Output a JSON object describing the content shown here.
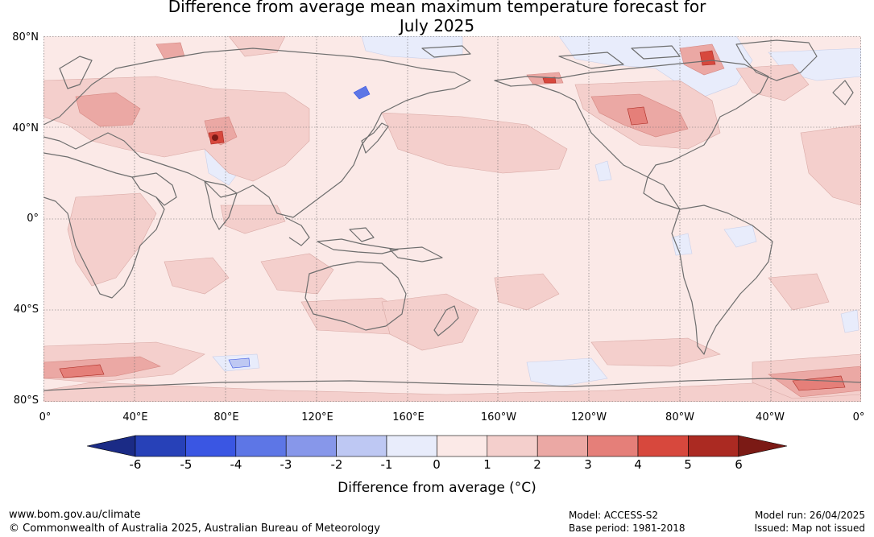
{
  "title_line1": "Difference from average mean maximum temperature forecast for",
  "title_line2": "July 2025",
  "lat_labels": [
    "80°N",
    "40°N",
    "0°",
    "40°S",
    "80°S"
  ],
  "lon_labels": [
    "0°",
    "40°E",
    "80°E",
    "120°E",
    "160°E",
    "160°W",
    "120°W",
    "80°W",
    "40°W",
    "0°"
  ],
  "legend": {
    "label": "Difference from average (°C)",
    "ticks": [
      "-6",
      "-5",
      "-4",
      "-3",
      "-2",
      "-1",
      "0",
      "1",
      "2",
      "3",
      "4",
      "5",
      "6"
    ],
    "colors": [
      "#1b2b86",
      "#2741b8",
      "#3a56e3",
      "#5d76e6",
      "#8797ea",
      "#bec8f3",
      "#e8ecfb",
      "#fbe9e7",
      "#f4cfcc",
      "#eba8a4",
      "#e57f79",
      "#d7483d",
      "#ab2a22",
      "#7b1a15"
    ]
  },
  "footer": {
    "website": "www.bom.gov.au/climate",
    "copyright": "© Commonwealth of Australia 2025, Australian Bureau of Meteorology",
    "model": "Model: ACCESS-S2",
    "base_period": "Base period: 1981-2018",
    "model_run": "Model run: 26/04/2025",
    "issued": "Issued: Map not issued"
  }
}
